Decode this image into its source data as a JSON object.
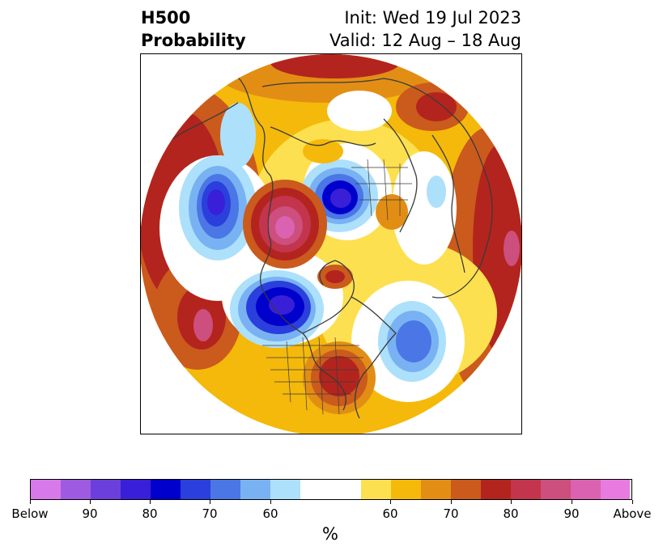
{
  "title": {
    "left_line1": "H500",
    "left_line2": "Probability",
    "right_line1": "Init: Wed 19 Jul 2023",
    "right_line2": "Valid: 12 Aug – 18 Aug"
  },
  "colorbar": {
    "unit": "%",
    "colors": [
      "#d77ae9",
      "#9e5ae0",
      "#6a3fdc",
      "#3a1fd8",
      "#0000cc",
      "#2a3fdc",
      "#4a76e6",
      "#79b2f2",
      "#ade0fb",
      "#ffffff",
      "#ffffff",
      "#fde04f",
      "#f4b90a",
      "#e28e15",
      "#cb5a1d",
      "#b3241e",
      "#c3354d",
      "#cc4f7e",
      "#da62b0",
      "#e87be0"
    ],
    "tick_labels": [
      "Below",
      "90",
      "80",
      "70",
      "60",
      "60",
      "70",
      "80",
      "90",
      "Above"
    ]
  },
  "legend_colors": {
    "below": "#3a1fd8",
    "above": "#b3241e",
    "neutral": "#ffffff"
  }
}
